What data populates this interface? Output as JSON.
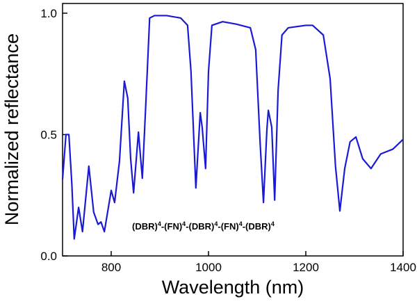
{
  "chart_data": {
    "type": "line",
    "xlabel": "Wavelength (nm)",
    "ylabel": "Normalized reflectance",
    "annotation": [
      "(DBR)",
      "4",
      "-(FN)",
      "4",
      "-(DBR)",
      "4",
      "-(FN)",
      "4",
      "-(DBR)",
      "4"
    ],
    "xlim": [
      700,
      1400
    ],
    "xticks": [
      800,
      1000,
      1200,
      1400
    ],
    "ylim": [
      0,
      1.04
    ],
    "yticks": [
      {
        "value": 0,
        "label": "0.0"
      },
      {
        "value": 0.5,
        "label": "0.5"
      },
      {
        "value": 1.0,
        "label": "1.0"
      }
    ],
    "grid": false,
    "series": [
      {
        "color": "#1a1ad6",
        "x": [
          700,
          707,
          713,
          719,
          724,
          733,
          741,
          754,
          764,
          773,
          779,
          786,
          800,
          807,
          817,
          827,
          834,
          840,
          846,
          856,
          864,
          871,
          879,
          889,
          914,
          943,
          957,
          964,
          974,
          983,
          987,
          994,
          1000,
          1007,
          1029,
          1057,
          1086,
          1097,
          1106,
          1113,
          1120,
          1123,
          1130,
          1136,
          1143,
          1151,
          1164,
          1200,
          1214,
          1236,
          1250,
          1261,
          1270,
          1280,
          1291,
          1303,
          1317,
          1334,
          1354,
          1379,
          1400
        ],
        "values": [
          0.315,
          0.5,
          0.5,
          0.3,
          0.07,
          0.2,
          0.1,
          0.37,
          0.18,
          0.13,
          0.14,
          0.1,
          0.27,
          0.22,
          0.39,
          0.72,
          0.65,
          0.4,
          0.26,
          0.51,
          0.32,
          0.62,
          0.98,
          0.99,
          0.99,
          0.98,
          0.95,
          0.76,
          0.28,
          0.59,
          0.53,
          0.36,
          0.76,
          0.95,
          0.965,
          0.955,
          0.94,
          0.85,
          0.47,
          0.22,
          0.52,
          0.6,
          0.53,
          0.23,
          0.68,
          0.91,
          0.94,
          0.95,
          0.95,
          0.91,
          0.73,
          0.37,
          0.185,
          0.36,
          0.47,
          0.49,
          0.4,
          0.36,
          0.42,
          0.44,
          0.48
        ]
      }
    ]
  }
}
